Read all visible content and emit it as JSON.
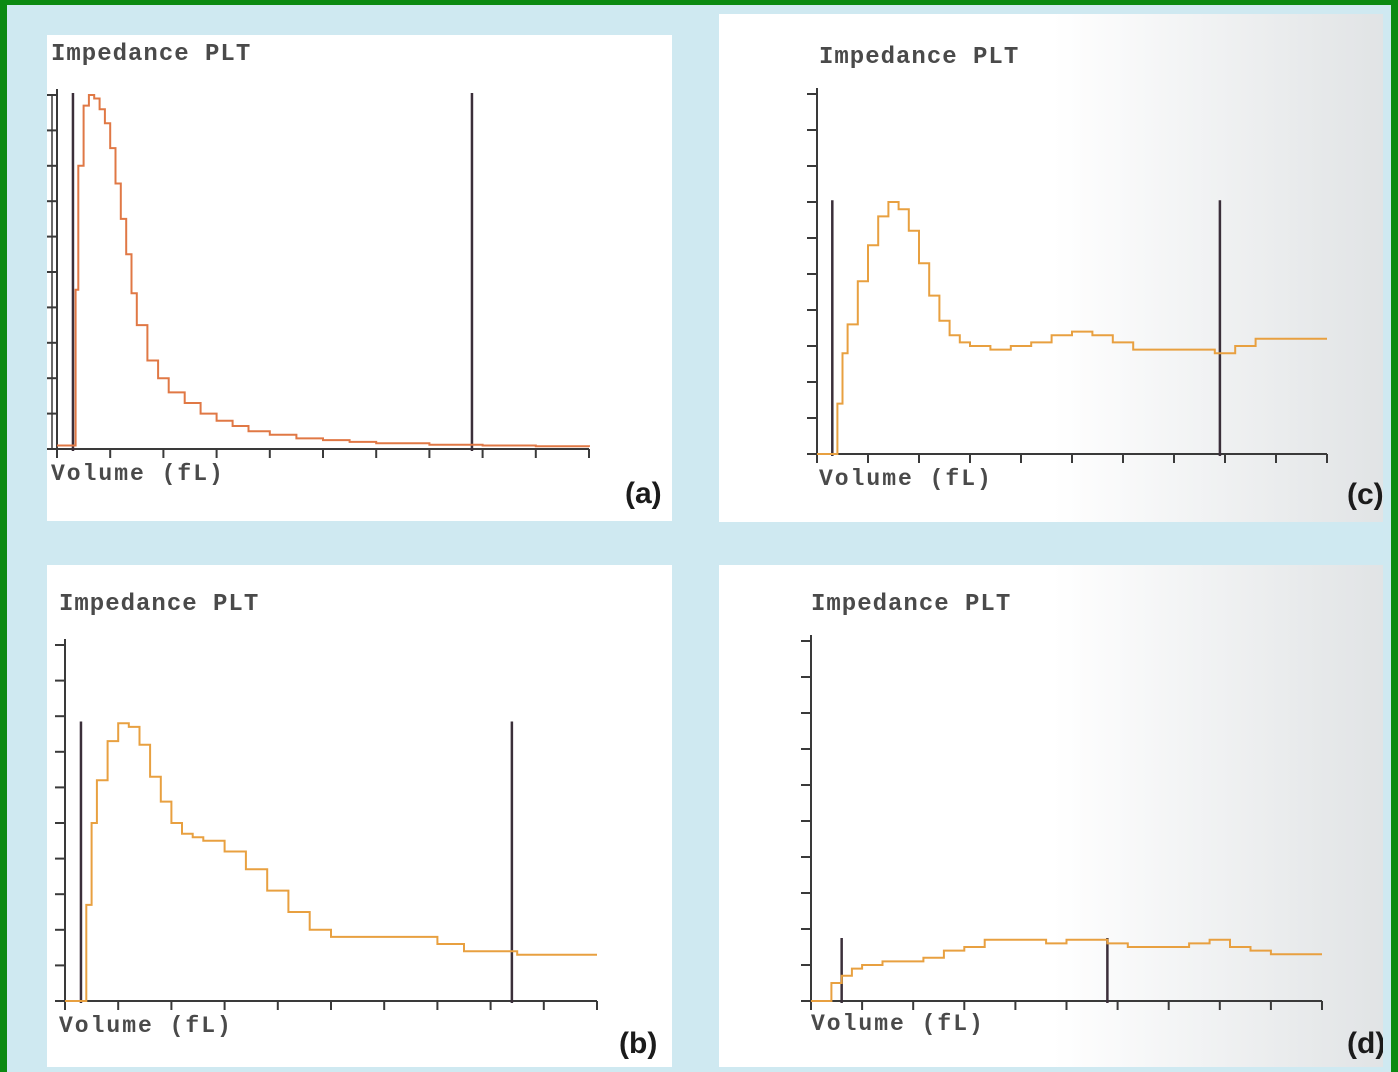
{
  "chart_data": [
    {
      "panel": "(a)",
      "type": "line",
      "title": "Impedance PLT",
      "xlabel": "Volume (fL)",
      "ylabel": "",
      "grid": false,
      "legend": "none",
      "line_color": "#e07845",
      "x_ticks": 11,
      "y_ticks": 10,
      "xlim": [
        0,
        100
      ],
      "ylim": [
        0,
        100
      ],
      "discriminators": [
        3,
        78
      ],
      "x": [
        0,
        2,
        3,
        3.5,
        4,
        5,
        6,
        7,
        8,
        9,
        10,
        11,
        12,
        13,
        14,
        15,
        17,
        19,
        21,
        24,
        27,
        30,
        33,
        36,
        40,
        45,
        50,
        55,
        60,
        70,
        80,
        90,
        100
      ],
      "y": [
        1,
        1,
        1,
        45,
        80,
        97,
        100,
        99,
        96,
        92,
        85,
        75,
        65,
        55,
        44,
        35,
        25,
        20,
        16,
        13,
        10,
        8,
        6.5,
        5,
        4,
        3,
        2.5,
        2,
        1.6,
        1.2,
        1,
        0.8,
        0.6
      ]
    },
    {
      "panel": "(b)",
      "type": "line",
      "title": "Impedance PLT",
      "xlabel": "Volume (fL)",
      "ylabel": "",
      "grid": false,
      "legend": "none",
      "line_color": "#e8a040",
      "x_ticks": 11,
      "y_ticks": 10,
      "xlim": [
        0,
        100
      ],
      "ylim": [
        0,
        100
      ],
      "discriminators": [
        3,
        84
      ],
      "x": [
        0,
        2,
        3,
        4,
        5,
        6,
        8,
        10,
        11,
        12,
        14,
        16,
        18,
        20,
        22,
        24,
        26,
        30,
        34,
        38,
        42,
        46,
        50,
        55,
        60,
        65,
        70,
        75,
        80,
        85,
        90,
        95,
        100
      ],
      "y": [
        0,
        0,
        0,
        27,
        50,
        62,
        73,
        78,
        78,
        77,
        72,
        63,
        56,
        50,
        47,
        46,
        45,
        42,
        37,
        31,
        25,
        20,
        18,
        18,
        18,
        18,
        16,
        14,
        14,
        13,
        13,
        13,
        13
      ]
    },
    {
      "panel": "(c)",
      "type": "line",
      "title": "Impedance PLT",
      "xlabel": "Volume (fL)",
      "ylabel": "",
      "grid": false,
      "legend": "none",
      "line_color": "#e8a040",
      "x_ticks": 11,
      "y_ticks": 10,
      "xlim": [
        0,
        100
      ],
      "ylim": [
        0,
        100
      ],
      "discriminators": [
        3,
        79
      ],
      "x": [
        0,
        2,
        3,
        4,
        5,
        6,
        8,
        10,
        12,
        14,
        16,
        18,
        20,
        22,
        24,
        26,
        28,
        30,
        34,
        38,
        42,
        46,
        50,
        54,
        58,
        62,
        66,
        70,
        74,
        78,
        82,
        86,
        90,
        94,
        100
      ],
      "y": [
        0,
        0,
        0,
        14,
        28,
        36,
        48,
        58,
        66,
        70,
        68,
        62,
        53,
        44,
        37,
        33,
        31,
        30,
        29,
        30,
        31,
        33,
        34,
        33,
        31,
        29,
        29,
        29,
        29,
        28,
        30,
        32,
        32,
        32,
        32
      ]
    },
    {
      "panel": "(d)",
      "type": "line",
      "title": "Impedance PLT",
      "xlabel": "Volume (fL)",
      "ylabel": "",
      "grid": false,
      "legend": "none",
      "line_color": "#e8a040",
      "x_ticks": 11,
      "y_ticks": 10,
      "xlim": [
        0,
        100
      ],
      "ylim": [
        0,
        100
      ],
      "discriminators": [
        6,
        58
      ],
      "x": [
        0,
        2,
        4,
        6,
        8,
        10,
        14,
        18,
        22,
        26,
        30,
        34,
        38,
        42,
        46,
        50,
        54,
        58,
        62,
        66,
        70,
        74,
        78,
        82,
        86,
        90,
        94,
        100
      ],
      "y": [
        0,
        0,
        5,
        7,
        9,
        10,
        11,
        11,
        12,
        14,
        15,
        17,
        17,
        17,
        16,
        17,
        17,
        16,
        15,
        15,
        15,
        16,
        17,
        15,
        14,
        13,
        13,
        13
      ]
    }
  ],
  "panel_labels": [
    "(a)",
    "(b)",
    "(c)",
    "(d)"
  ]
}
